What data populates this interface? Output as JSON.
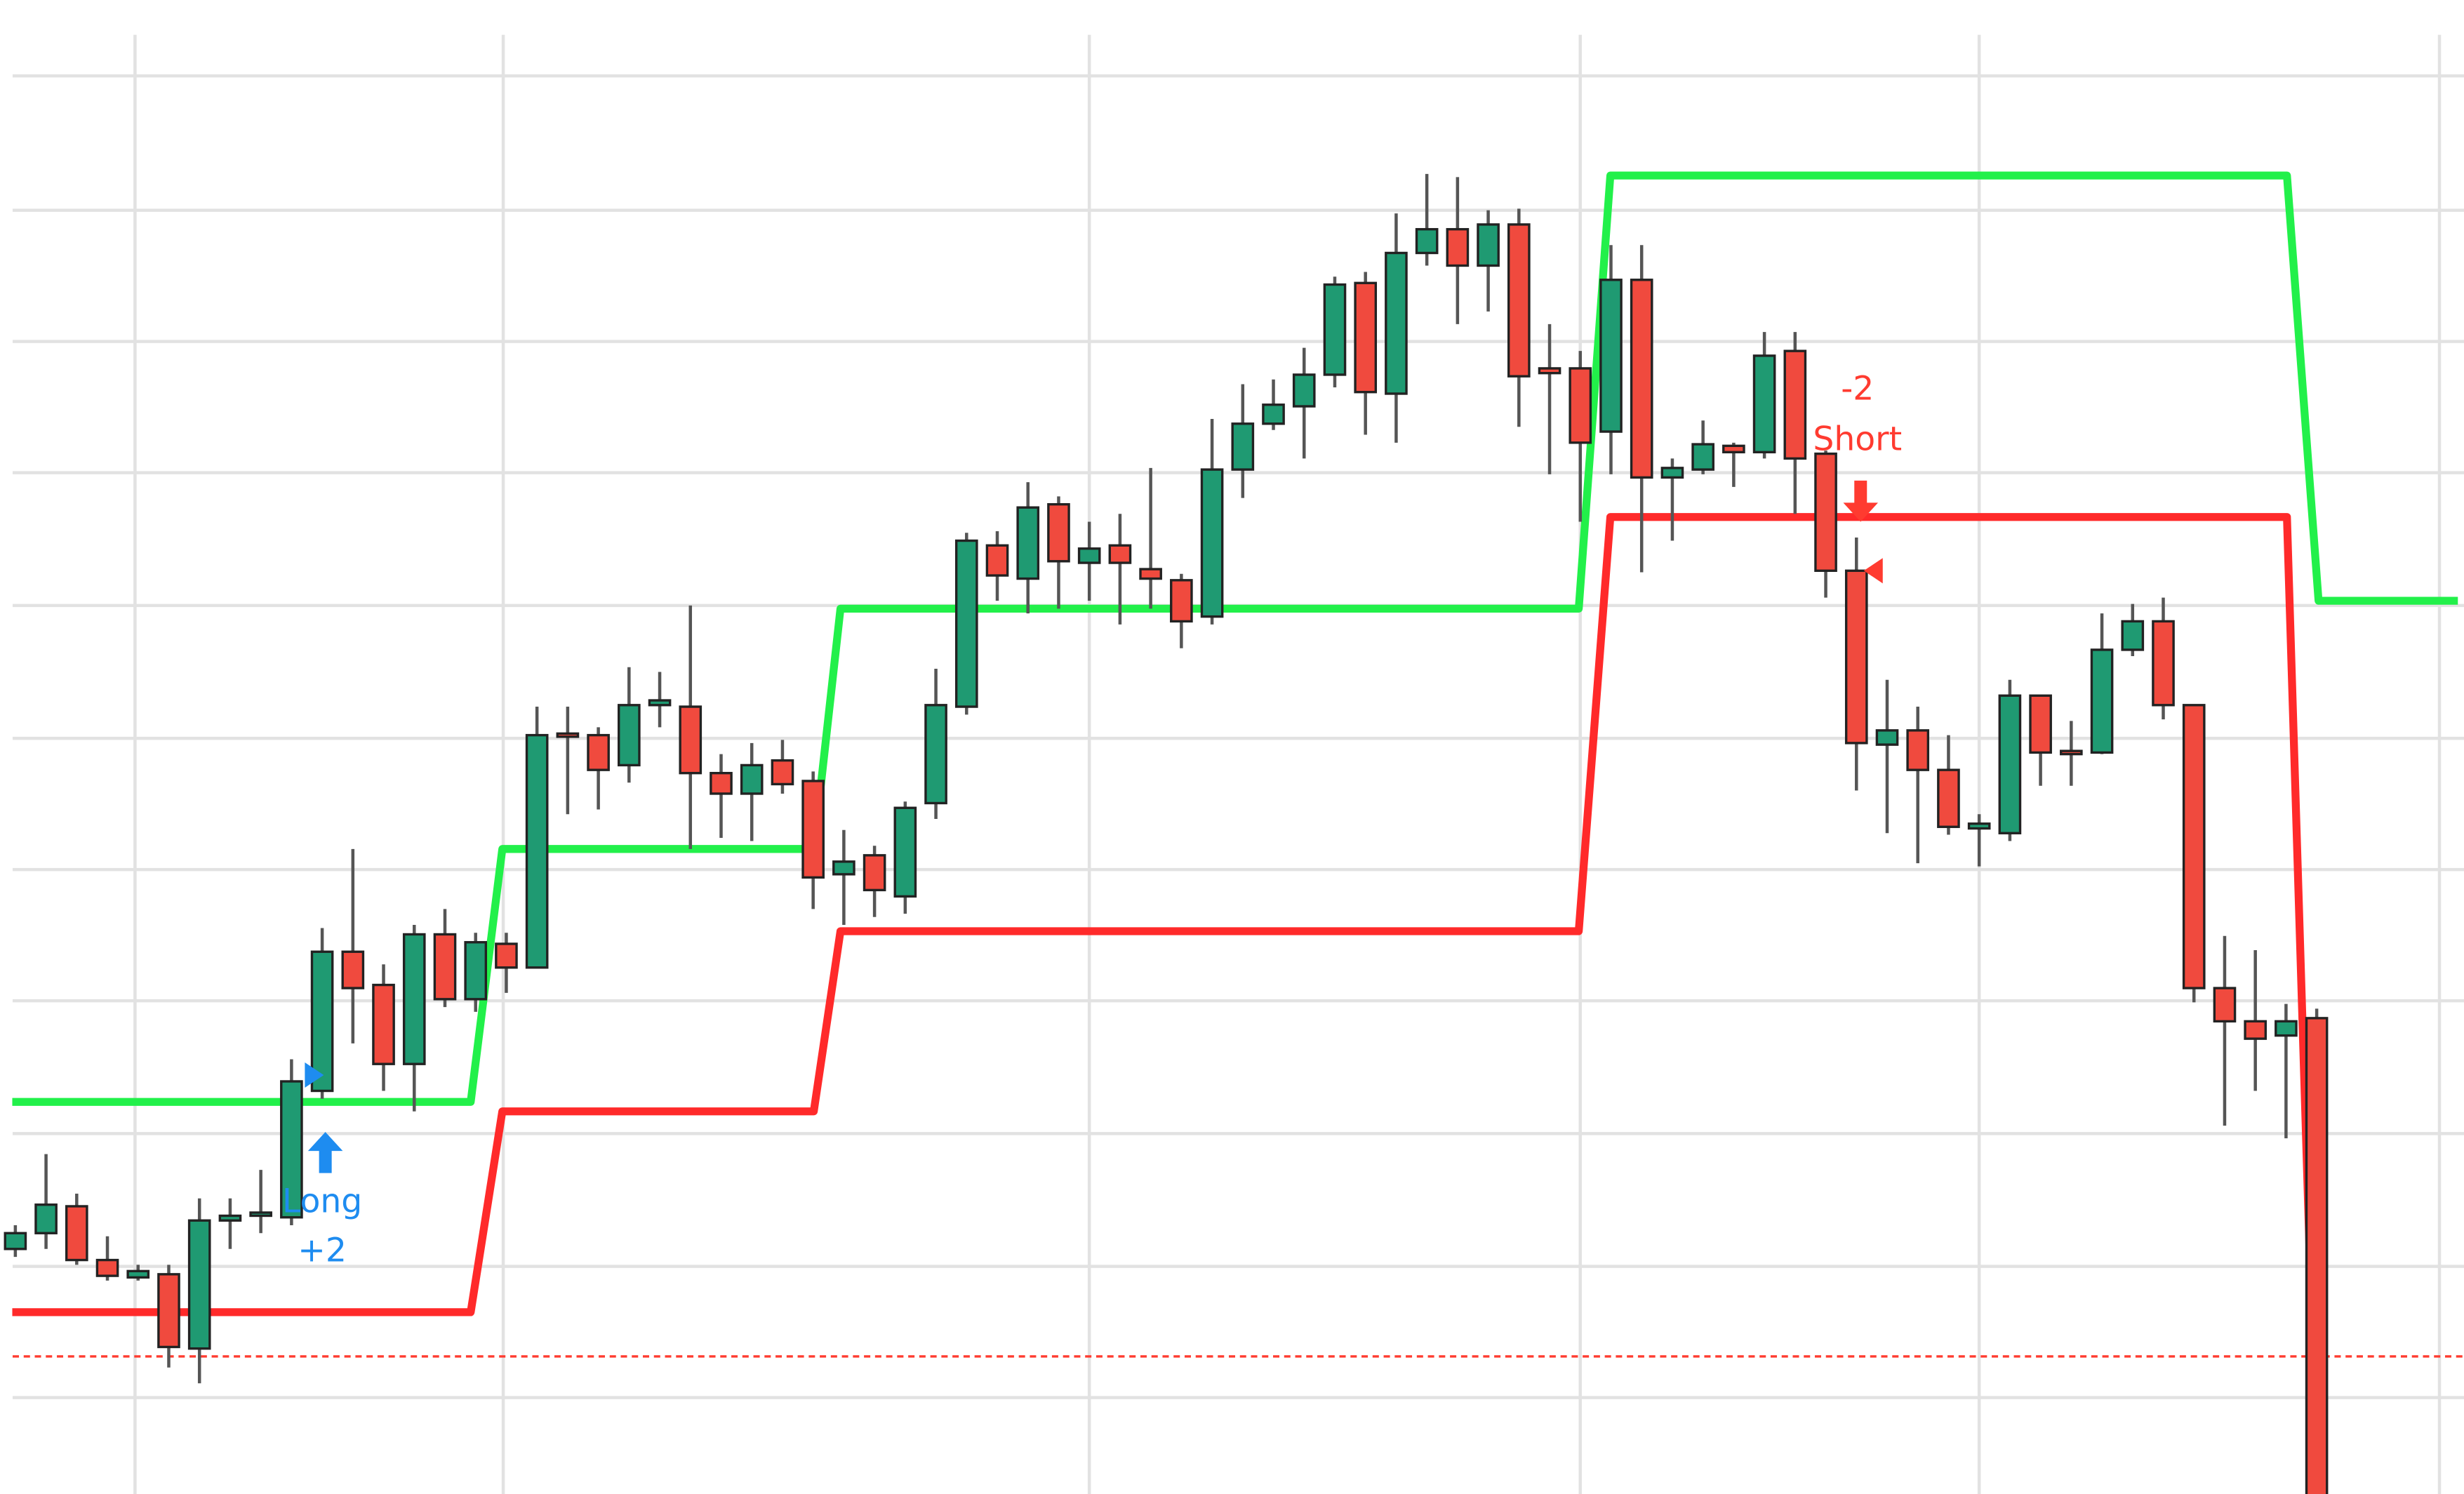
{
  "chart_data": {
    "type": "candlestick",
    "x": [
      0,
      1,
      2,
      3,
      4,
      5,
      6,
      7,
      8,
      9,
      10,
      11,
      12,
      13,
      14,
      15,
      16,
      17,
      18,
      19,
      20,
      21,
      22,
      23,
      24,
      25,
      26,
      27,
      28,
      29,
      30,
      31,
      32,
      33,
      34,
      35,
      36,
      37,
      38,
      39,
      40,
      41,
      42,
      43,
      44,
      45,
      46,
      47,
      48,
      49,
      50,
      51,
      52,
      53,
      54,
      55,
      56,
      57,
      58,
      59,
      60,
      61,
      62,
      63,
      64,
      65,
      66,
      67,
      68,
      69,
      70,
      71,
      72,
      73,
      74,
      75
    ],
    "open": [
      155,
      165,
      182,
      148,
      137,
      139,
      92,
      173,
      177,
      175,
      255,
      343,
      322,
      272,
      354,
      313,
      348,
      333,
      481,
      480,
      461,
      499,
      498,
      456,
      443,
      464,
      451,
      392,
      404,
      378,
      437,
      498,
      600,
      579,
      626,
      589,
      600,
      585,
      578,
      555,
      648,
      677,
      688,
      708,
      766,
      696,
      785,
      800,
      777,
      803,
      712,
      712,
      672,
      768,
      643,
      648,
      663,
      659,
      723,
      658,
      584,
      474,
      483,
      458,
      421,
      418,
      505,
      470,
      469,
      534,
      552,
      499,
      320,
      299,
      290,
      301
    ],
    "high": [
      170,
      215,
      190,
      163,
      145,
      145,
      187,
      187,
      205,
      275,
      358,
      408,
      335,
      360,
      370,
      355,
      355,
      498,
      498,
      485,
      523,
      520,
      562,
      468,
      475,
      477,
      457,
      420,
      410,
      438,
      522,
      608,
      609,
      640,
      631,
      615,
      620,
      649,
      582,
      680,
      702,
      705,
      725,
      770,
      773,
      810,
      835,
      833,
      812,
      813,
      740,
      723,
      790,
      790,
      655,
      679,
      665,
      735,
      735,
      660,
      605,
      515,
      498,
      480,
      430,
      515,
      505,
      489,
      557,
      563,
      567,
      499,
      353,
      344,
      310,
      307
    ],
    "low": [
      150,
      155,
      145,
      135,
      135,
      80,
      70,
      155,
      165,
      170,
      250,
      285,
      255,
      242,
      308,
      305,
      317,
      333,
      430,
      433,
      450,
      485,
      408,
      415,
      413,
      443,
      370,
      360,
      365,
      367,
      427,
      493,
      565,
      557,
      560,
      565,
      550,
      560,
      535,
      550,
      630,
      673,
      655,
      700,
      670,
      665,
      777,
      740,
      748,
      675,
      645,
      615,
      645,
      583,
      603,
      645,
      637,
      655,
      620,
      567,
      445,
      418,
      399,
      417,
      397,
      413,
      448,
      448,
      468,
      530,
      490,
      311,
      233,
      255,
      225,
      -30
    ],
    "close": [
      165,
      183,
      148,
      138,
      141,
      93,
      173,
      176,
      178,
      261,
      343,
      320,
      272,
      354,
      313,
      349,
      333,
      480,
      479,
      458,
      499,
      502,
      456,
      443,
      461,
      449,
      390,
      400,
      382,
      434,
      499,
      603,
      581,
      624,
      590,
      598,
      589,
      579,
      552,
      648,
      677,
      689,
      708,
      765,
      697,
      785,
      800,
      777,
      803,
      707,
      709,
      665,
      768,
      643,
      649,
      664,
      659,
      720,
      655,
      584,
      475,
      483,
      458,
      422,
      424,
      505,
      469,
      468,
      534,
      552,
      499,
      320,
      299,
      288,
      299,
      -20
    ],
    "up_color": "#1f9a72",
    "down_color": "#f04a3e",
    "lines": [
      {
        "color": "#22f04a",
        "x": [
          -0.1,
          14.84,
          15.87,
          26.02,
          26.89,
          50.95,
          51.98,
          74.03,
          75.06,
          79.6
        ],
        "values": [
          248,
          248,
          408,
          408,
          560,
          560,
          834,
          834,
          565,
          565
        ]
      },
      {
        "color": "#ff2a2a",
        "x": [
          -0.1,
          14.84,
          15.87,
          26.02,
          26.89,
          50.95,
          51.98,
          74.03,
          75.01
        ],
        "values": [
          115,
          115,
          242,
          242,
          356,
          356,
          618,
          618,
          0
        ]
      }
    ],
    "reference_line": {
      "value": 87,
      "color": "#ff3b2f"
    },
    "annotations": [
      {
        "texts": [
          "Long",
          "+2"
        ],
        "color": "#1e8cf0"
      },
      {
        "texts": [
          "-2",
          "Short"
        ],
        "color": "#ff3b30"
      }
    ],
    "xlim": [
      -0.5,
      79.8
    ],
    "ylim": [
      0,
      945
    ],
    "xticks": [
      3.9,
      15.9,
      35.0,
      51.0,
      64.0,
      79.0
    ],
    "yticks": [
      61,
      144,
      228,
      312,
      395,
      478,
      562,
      646,
      729,
      812,
      897
    ],
    "grid": true
  }
}
